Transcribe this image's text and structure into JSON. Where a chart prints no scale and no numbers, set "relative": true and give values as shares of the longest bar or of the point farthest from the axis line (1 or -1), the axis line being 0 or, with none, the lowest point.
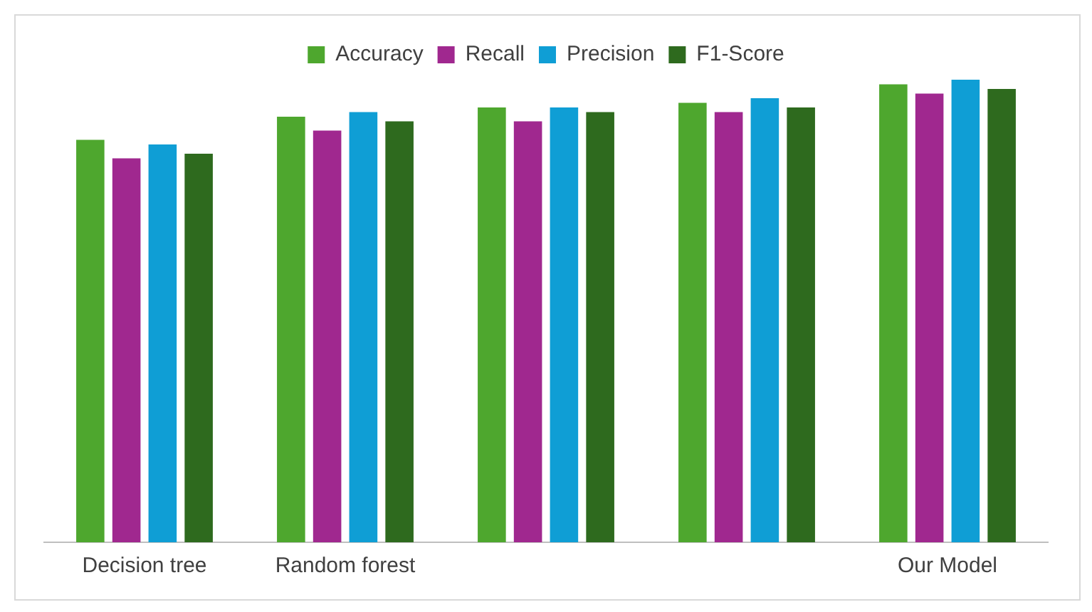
{
  "chart_data": {
    "type": "bar",
    "relative": true,
    "legend": "top",
    "grid": false,
    "categories": [
      "Decision tree",
      "Random forest",
      null,
      null,
      "Our Model"
    ],
    "series": [
      {
        "name": "Accuracy",
        "color": "#4ea72e",
        "values": [
          0.87,
          0.92,
          0.94,
          0.95,
          0.99
        ]
      },
      {
        "name": "Recall",
        "color": "#a0288f",
        "values": [
          0.83,
          0.89,
          0.91,
          0.93,
          0.97
        ]
      },
      {
        "name": "Precision",
        "color": "#0f9ed5",
        "values": [
          0.86,
          0.93,
          0.94,
          0.96,
          1
        ]
      },
      {
        "name": "F1-Score",
        "color": "#2e6a1e",
        "values": [
          0.84,
          0.91,
          0.93,
          0.94,
          0.98
        ]
      }
    ]
  }
}
